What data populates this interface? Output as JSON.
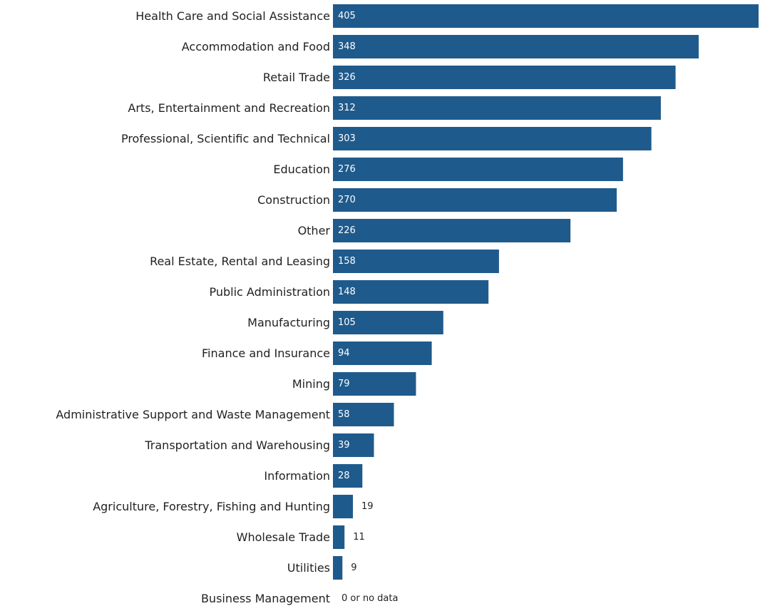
{
  "chart_data": {
    "type": "bar",
    "orientation": "horizontal",
    "categories": [
      "Health Care and Social Assistance",
      "Accommodation and Food",
      "Retail Trade",
      "Arts, Entertainment and Recreation",
      "Professional, Scientific and Technical",
      "Education",
      "Construction",
      "Other",
      "Real Estate, Rental and Leasing",
      "Public Administration",
      "Manufacturing",
      "Finance and Insurance",
      "Mining",
      "Administrative Support and Waste Management",
      "Transportation and Warehousing",
      "Information",
      "Agriculture, Forestry, Fishing and Hunting",
      "Wholesale Trade",
      "Utilities",
      "Business Management"
    ],
    "values": [
      405,
      348,
      326,
      312,
      303,
      276,
      270,
      226,
      158,
      148,
      105,
      94,
      79,
      58,
      39,
      28,
      19,
      11,
      9,
      0
    ],
    "value_labels": [
      "405",
      "348",
      "326",
      "312",
      "303",
      "276",
      "270",
      "226",
      "158",
      "148",
      "105",
      "94",
      "79",
      "58",
      "39",
      "28",
      "19",
      "11",
      "9",
      "0 or no data"
    ],
    "xlim": [
      0,
      405
    ],
    "title": "",
    "xlabel": "",
    "ylabel": "",
    "grid": false,
    "legend": "none",
    "bar_color": "#1f5a8c"
  }
}
